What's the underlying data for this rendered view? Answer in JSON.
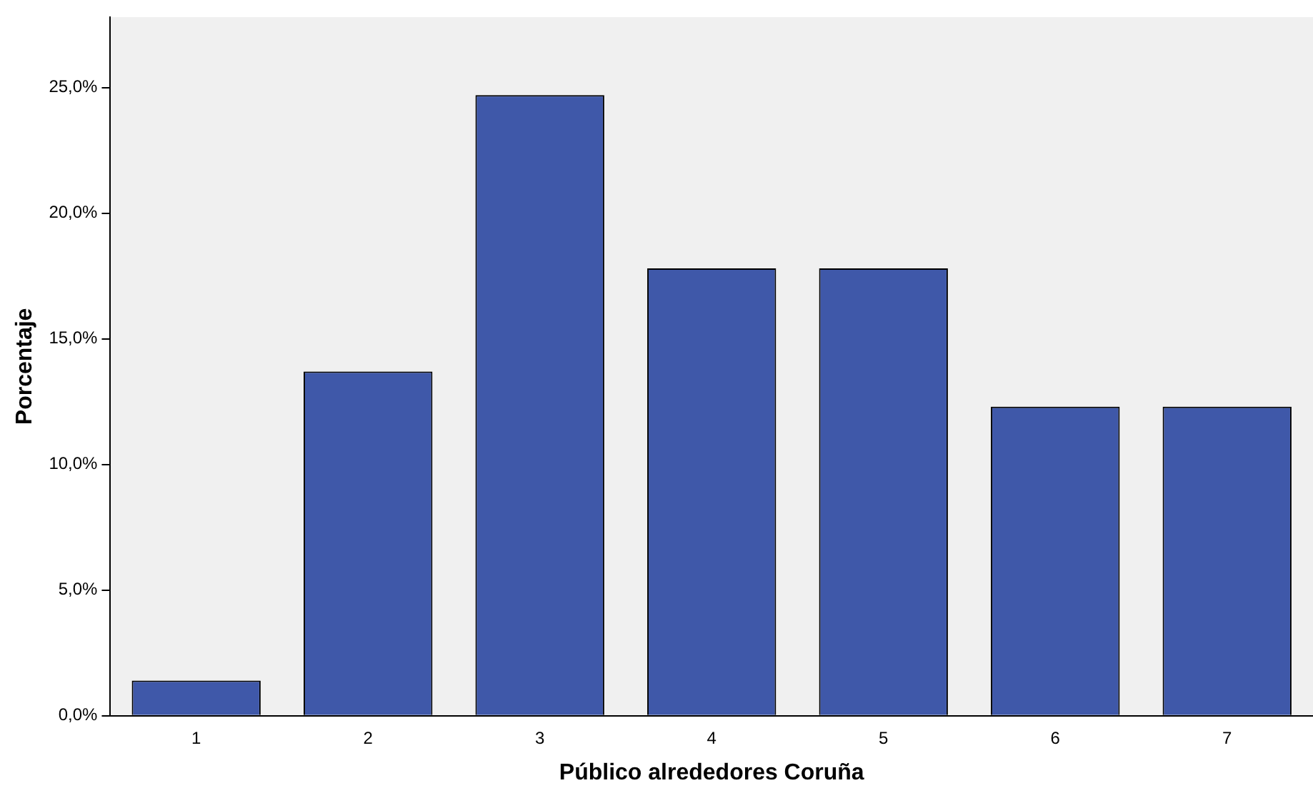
{
  "chart_data": {
    "type": "bar",
    "xlabel": "Público alrededores Coruña",
    "ylabel": "Porcentaje",
    "categories": [
      "1",
      "2",
      "3",
      "4",
      "5",
      "6",
      "7"
    ],
    "values": [
      1.4,
      13.7,
      24.7,
      17.8,
      17.8,
      12.3,
      12.3
    ],
    "color": "#3f58a9",
    "ylim": [
      0,
      27.8
    ],
    "yticks": [
      {
        "value": 0,
        "label": "0,0%"
      },
      {
        "value": 5,
        "label": "5,0%"
      },
      {
        "value": 10,
        "label": "10,0%"
      },
      {
        "value": 15,
        "label": "15,0%"
      },
      {
        "value": 20,
        "label": "20,0%"
      },
      {
        "value": 25,
        "label": "25,0%"
      }
    ],
    "grid": false,
    "legend": false
  }
}
